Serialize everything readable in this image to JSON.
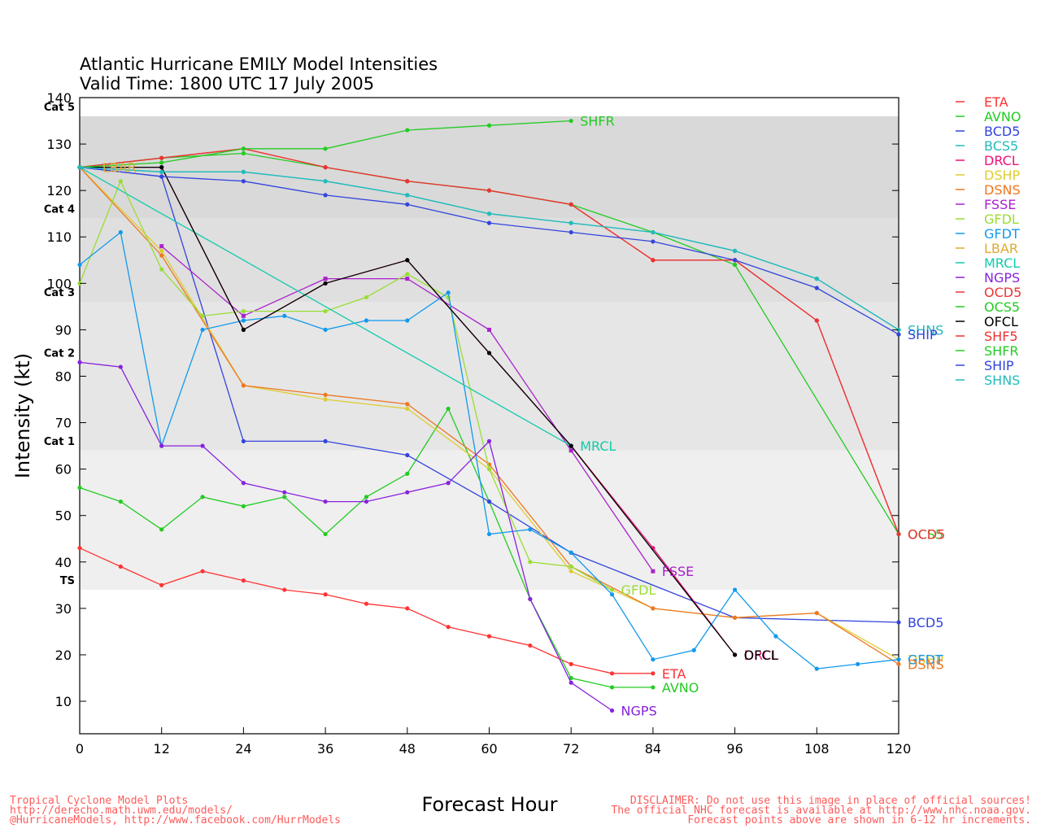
{
  "chart_data": {
    "type": "line",
    "title": "Atlantic Hurricane EMILY Model Intensities",
    "subtitle": "Valid Time: 1800 UTC 17 July 2005",
    "xlabel": "Forecast Hour",
    "ylabel": "Intensity (kt)",
    "xlim": [
      0,
      120
    ],
    "ylim": [
      3,
      140
    ],
    "xticks": [
      0,
      12,
      24,
      36,
      48,
      60,
      72,
      84,
      96,
      108,
      120
    ],
    "yticks": [
      10,
      20,
      30,
      40,
      50,
      60,
      70,
      80,
      90,
      100,
      110,
      120,
      130,
      140
    ],
    "bands": [
      {
        "label": "TS",
        "from": 34,
        "to": 64,
        "color": "#efefef"
      },
      {
        "label": "Cat 1",
        "from": 64,
        "to": 83,
        "color": "#e6e6e6"
      },
      {
        "label": "Cat 2",
        "from": 83,
        "to": 96,
        "color": "#e6e6e6"
      },
      {
        "label": "Cat 3",
        "from": 96,
        "to": 114,
        "color": "#dfdfdf"
      },
      {
        "label": "Cat 4",
        "from": 114,
        "to": 136,
        "color": "#d9d9d9"
      },
      {
        "label": "Cat 5",
        "from": 136,
        "to": 140,
        "color": "#ffffff"
      }
    ],
    "legend_position": "right",
    "series": [
      {
        "name": "ETA",
        "color": "#ff3333",
        "marker": "circle",
        "points": [
          [
            0,
            43
          ],
          [
            6,
            39
          ],
          [
            12,
            35
          ],
          [
            18,
            38
          ],
          [
            24,
            36
          ],
          [
            30,
            34
          ],
          [
            36,
            33
          ],
          [
            42,
            31
          ],
          [
            48,
            30
          ],
          [
            54,
            26
          ],
          [
            60,
            24
          ],
          [
            66,
            22
          ],
          [
            72,
            18
          ],
          [
            78,
            16
          ],
          [
            84,
            16
          ]
        ]
      },
      {
        "name": "AVNO",
        "color": "#22cc22",
        "marker": "circle",
        "points": [
          [
            0,
            56
          ],
          [
            6,
            53
          ],
          [
            12,
            47
          ],
          [
            18,
            54
          ],
          [
            24,
            52
          ],
          [
            30,
            54
          ],
          [
            36,
            46
          ],
          [
            42,
            54
          ],
          [
            48,
            59
          ],
          [
            54,
            73
          ],
          [
            60,
            53
          ],
          [
            66,
            32
          ],
          [
            72,
            15
          ],
          [
            78,
            13
          ],
          [
            84,
            13
          ]
        ]
      },
      {
        "name": "BCD5",
        "color": "#3344dd",
        "marker": "circle",
        "points": [
          [
            0,
            125
          ],
          [
            12,
            123
          ],
          [
            24,
            66
          ],
          [
            36,
            66
          ],
          [
            48,
            63
          ],
          [
            60,
            53
          ],
          [
            72,
            42
          ],
          [
            96,
            28
          ],
          [
            120,
            27
          ]
        ]
      },
      {
        "name": "BCS5",
        "color": "#22bbbb",
        "marker": "circle",
        "points": [
          [
            0,
            125
          ],
          [
            12,
            124
          ],
          [
            24,
            124
          ],
          [
            36,
            122
          ],
          [
            48,
            119
          ],
          [
            60,
            115
          ],
          [
            72,
            113
          ],
          [
            84,
            111
          ],
          [
            96,
            107
          ],
          [
            108,
            101
          ],
          [
            120,
            90
          ]
        ]
      },
      {
        "name": "DRCL",
        "color": "#ee1177",
        "marker": "circle",
        "points": [
          [
            0,
            125
          ],
          [
            12,
            125
          ],
          [
            24,
            90
          ],
          [
            36,
            100
          ],
          [
            48,
            105
          ],
          [
            60,
            85
          ],
          [
            72,
            65
          ],
          [
            84,
            43
          ],
          [
            96,
            20
          ]
        ]
      },
      {
        "name": "DSHP",
        "color": "#ddcc33",
        "marker": "circle",
        "points": [
          [
            0,
            125
          ],
          [
            12,
            107
          ],
          [
            24,
            78
          ],
          [
            36,
            75
          ],
          [
            48,
            73
          ],
          [
            60,
            60
          ],
          [
            72,
            38
          ],
          [
            84,
            30
          ],
          [
            96,
            28
          ],
          [
            108,
            29
          ],
          [
            120,
            19
          ]
        ]
      },
      {
        "name": "DSNS",
        "color": "#ee7722",
        "marker": "circle",
        "points": [
          [
            0,
            125
          ],
          [
            12,
            106
          ],
          [
            24,
            78
          ],
          [
            36,
            76
          ],
          [
            48,
            74
          ],
          [
            60,
            61
          ],
          [
            72,
            39
          ],
          [
            84,
            30
          ],
          [
            96,
            28
          ],
          [
            108,
            29
          ],
          [
            120,
            18
          ]
        ]
      },
      {
        "name": "FSSE",
        "color": "#aa22cc",
        "marker": "square",
        "points": [
          [
            12,
            108
          ],
          [
            24,
            93
          ],
          [
            36,
            101
          ],
          [
            48,
            101
          ],
          [
            60,
            90
          ],
          [
            72,
            64
          ],
          [
            84,
            38
          ]
        ]
      },
      {
        "name": "GFDL",
        "color": "#99dd33",
        "marker": "circle",
        "points": [
          [
            0,
            100
          ],
          [
            6,
            122
          ],
          [
            12,
            103
          ],
          [
            18,
            93
          ],
          [
            24,
            94
          ],
          [
            36,
            94
          ],
          [
            42,
            97
          ],
          [
            48,
            102
          ],
          [
            54,
            97
          ],
          [
            60,
            60
          ],
          [
            66,
            40
          ],
          [
            72,
            39
          ],
          [
            78,
            34
          ]
        ]
      },
      {
        "name": "GFDT",
        "color": "#1199ee",
        "marker": "circle",
        "points": [
          [
            0,
            104
          ],
          [
            6,
            111
          ],
          [
            12,
            65
          ],
          [
            18,
            90
          ],
          [
            24,
            92
          ],
          [
            30,
            93
          ],
          [
            36,
            90
          ],
          [
            42,
            92
          ],
          [
            48,
            92
          ],
          [
            54,
            98
          ],
          [
            60,
            46
          ],
          [
            66,
            47
          ],
          [
            72,
            42
          ],
          [
            78,
            33
          ],
          [
            84,
            19
          ],
          [
            90,
            21
          ],
          [
            96,
            34
          ],
          [
            102,
            24
          ],
          [
            108,
            17
          ],
          [
            114,
            18
          ],
          [
            120,
            19
          ]
        ]
      },
      {
        "name": "LBAR",
        "color": "#ddaa33",
        "marker": "circle",
        "points": [
          [
            0,
            125
          ],
          [
            2,
            125
          ]
        ]
      },
      {
        "name": "MRCL",
        "color": "#11ccaa",
        "marker": "circle",
        "points": [
          [
            0,
            125
          ],
          [
            72,
            65
          ]
        ]
      },
      {
        "name": "NGPS",
        "color": "#8822dd",
        "marker": "circle",
        "points": [
          [
            0,
            83
          ],
          [
            6,
            82
          ],
          [
            12,
            65
          ],
          [
            18,
            65
          ],
          [
            24,
            57
          ],
          [
            30,
            55
          ],
          [
            36,
            53
          ],
          [
            42,
            53
          ],
          [
            48,
            55
          ],
          [
            54,
            57
          ],
          [
            60,
            66
          ],
          [
            66,
            32
          ],
          [
            72,
            14
          ],
          [
            78,
            8
          ]
        ]
      },
      {
        "name": "OCD5",
        "color": "#ee3333",
        "marker": "circle",
        "points": [
          [
            0,
            125
          ],
          [
            12,
            127
          ],
          [
            24,
            129
          ],
          [
            36,
            125
          ],
          [
            48,
            122
          ],
          [
            60,
            120
          ],
          [
            72,
            117
          ],
          [
            84,
            105
          ],
          [
            96,
            105
          ],
          [
            108,
            92
          ],
          [
            120,
            46
          ]
        ]
      },
      {
        "name": "OCS5",
        "color": "#22cc22",
        "marker": "circle",
        "points": [
          [
            0,
            125
          ],
          [
            12,
            127
          ],
          [
            24,
            128
          ],
          [
            36,
            125
          ],
          [
            48,
            122
          ],
          [
            60,
            120
          ],
          [
            72,
            117
          ],
          [
            84,
            111
          ],
          [
            96,
            104
          ],
          [
            120,
            46
          ]
        ]
      },
      {
        "name": "OFCL",
        "color": "#000000",
        "marker": "circle",
        "points": [
          [
            0,
            125
          ],
          [
            12,
            125
          ],
          [
            24,
            90
          ],
          [
            36,
            100
          ],
          [
            48,
            105
          ],
          [
            60,
            85
          ],
          [
            72,
            65
          ],
          [
            96,
            20
          ]
        ]
      },
      {
        "name": "SHF5",
        "color": "#ee3333",
        "marker": "circle",
        "points": [
          [
            0,
            125
          ],
          [
            12,
            127
          ],
          [
            24,
            129
          ],
          [
            36,
            125
          ],
          [
            48,
            122
          ],
          [
            60,
            120
          ],
          [
            72,
            117
          ],
          [
            84,
            105
          ],
          [
            96,
            105
          ],
          [
            108,
            92
          ],
          [
            120,
            46
          ]
        ]
      },
      {
        "name": "SHFR",
        "color": "#22cc22",
        "marker": "circle",
        "points": [
          [
            0,
            125
          ],
          [
            12,
            126
          ],
          [
            24,
            129
          ],
          [
            36,
            129
          ],
          [
            48,
            133
          ],
          [
            60,
            134
          ],
          [
            72,
            135
          ]
        ]
      },
      {
        "name": "SHIP",
        "color": "#3344dd",
        "marker": "circle",
        "points": [
          [
            0,
            125
          ],
          [
            12,
            123
          ],
          [
            24,
            122
          ],
          [
            36,
            119
          ],
          [
            48,
            117
          ],
          [
            60,
            113
          ],
          [
            72,
            111
          ],
          [
            84,
            109
          ],
          [
            96,
            105
          ],
          [
            108,
            99
          ],
          [
            120,
            89
          ]
        ]
      },
      {
        "name": "SHNS",
        "color": "#22bbbb",
        "marker": "circle",
        "points": [
          [
            0,
            125
          ],
          [
            12,
            124
          ],
          [
            24,
            124
          ],
          [
            36,
            122
          ],
          [
            48,
            119
          ],
          [
            60,
            115
          ],
          [
            72,
            113
          ],
          [
            84,
            111
          ],
          [
            96,
            107
          ],
          [
            108,
            101
          ],
          [
            120,
            90
          ]
        ]
      }
    ],
    "end_labels": [
      {
        "text": "SHFR",
        "x": 72,
        "y": 135,
        "color": "#22cc22"
      },
      {
        "text": "MRCL",
        "x": 72,
        "y": 65,
        "color": "#11ccaa"
      },
      {
        "text": "FSSE",
        "x": 84,
        "y": 38,
        "color": "#aa22cc"
      },
      {
        "text": "GFDL",
        "x": 78,
        "y": 34,
        "color": "#99dd33"
      },
      {
        "text": "ETA",
        "x": 84,
        "y": 16,
        "color": "#ff3333"
      },
      {
        "text": "AVNO",
        "x": 84,
        "y": 13,
        "color": "#22cc22"
      },
      {
        "text": "NGPS",
        "x": 78,
        "y": 8,
        "color": "#8822dd"
      },
      {
        "text": "DRCL",
        "x": 96,
        "y": 20,
        "color": "#ee1177"
      },
      {
        "text": "OFCL",
        "x": 96,
        "y": 20,
        "color": "#000000"
      },
      {
        "text": "LBAR",
        "x": 2,
        "y": 125,
        "color": "#ddaa33"
      },
      {
        "text": "SHNS",
        "x": 120,
        "y": 90,
        "color": "#22bbbb"
      },
      {
        "text": "SHIP",
        "x": 120,
        "y": 89,
        "color": "#3344dd"
      },
      {
        "text": "OCS5",
        "x": 120,
        "y": 46,
        "color": "#22cc22"
      },
      {
        "text": "OCD5",
        "x": 120,
        "y": 46,
        "color": "#ee3333"
      },
      {
        "text": "BCD5",
        "x": 120,
        "y": 27,
        "color": "#3344dd"
      },
      {
        "text": "DSHP",
        "x": 120,
        "y": 19,
        "color": "#ddcc33"
      },
      {
        "text": "GFDT",
        "x": 120,
        "y": 19,
        "color": "#1199ee"
      },
      {
        "text": "DSNS",
        "x": 120,
        "y": 18,
        "color": "#ee7722"
      }
    ]
  },
  "footer": {
    "left_lines": [
      "Tropical Cyclone Model Plots",
      "http://derecho.math.uwm.edu/models/",
      "@HurricaneModels, http://www.facebook.com/HurrModels"
    ],
    "right_lines": [
      "DISCLAIMER: Do not use this image in place of official sources!",
      "The official NHC forecast is available at http://www.nhc.noaa.gov.",
      "Forecast points above are shown in 6-12 hr increments."
    ]
  }
}
